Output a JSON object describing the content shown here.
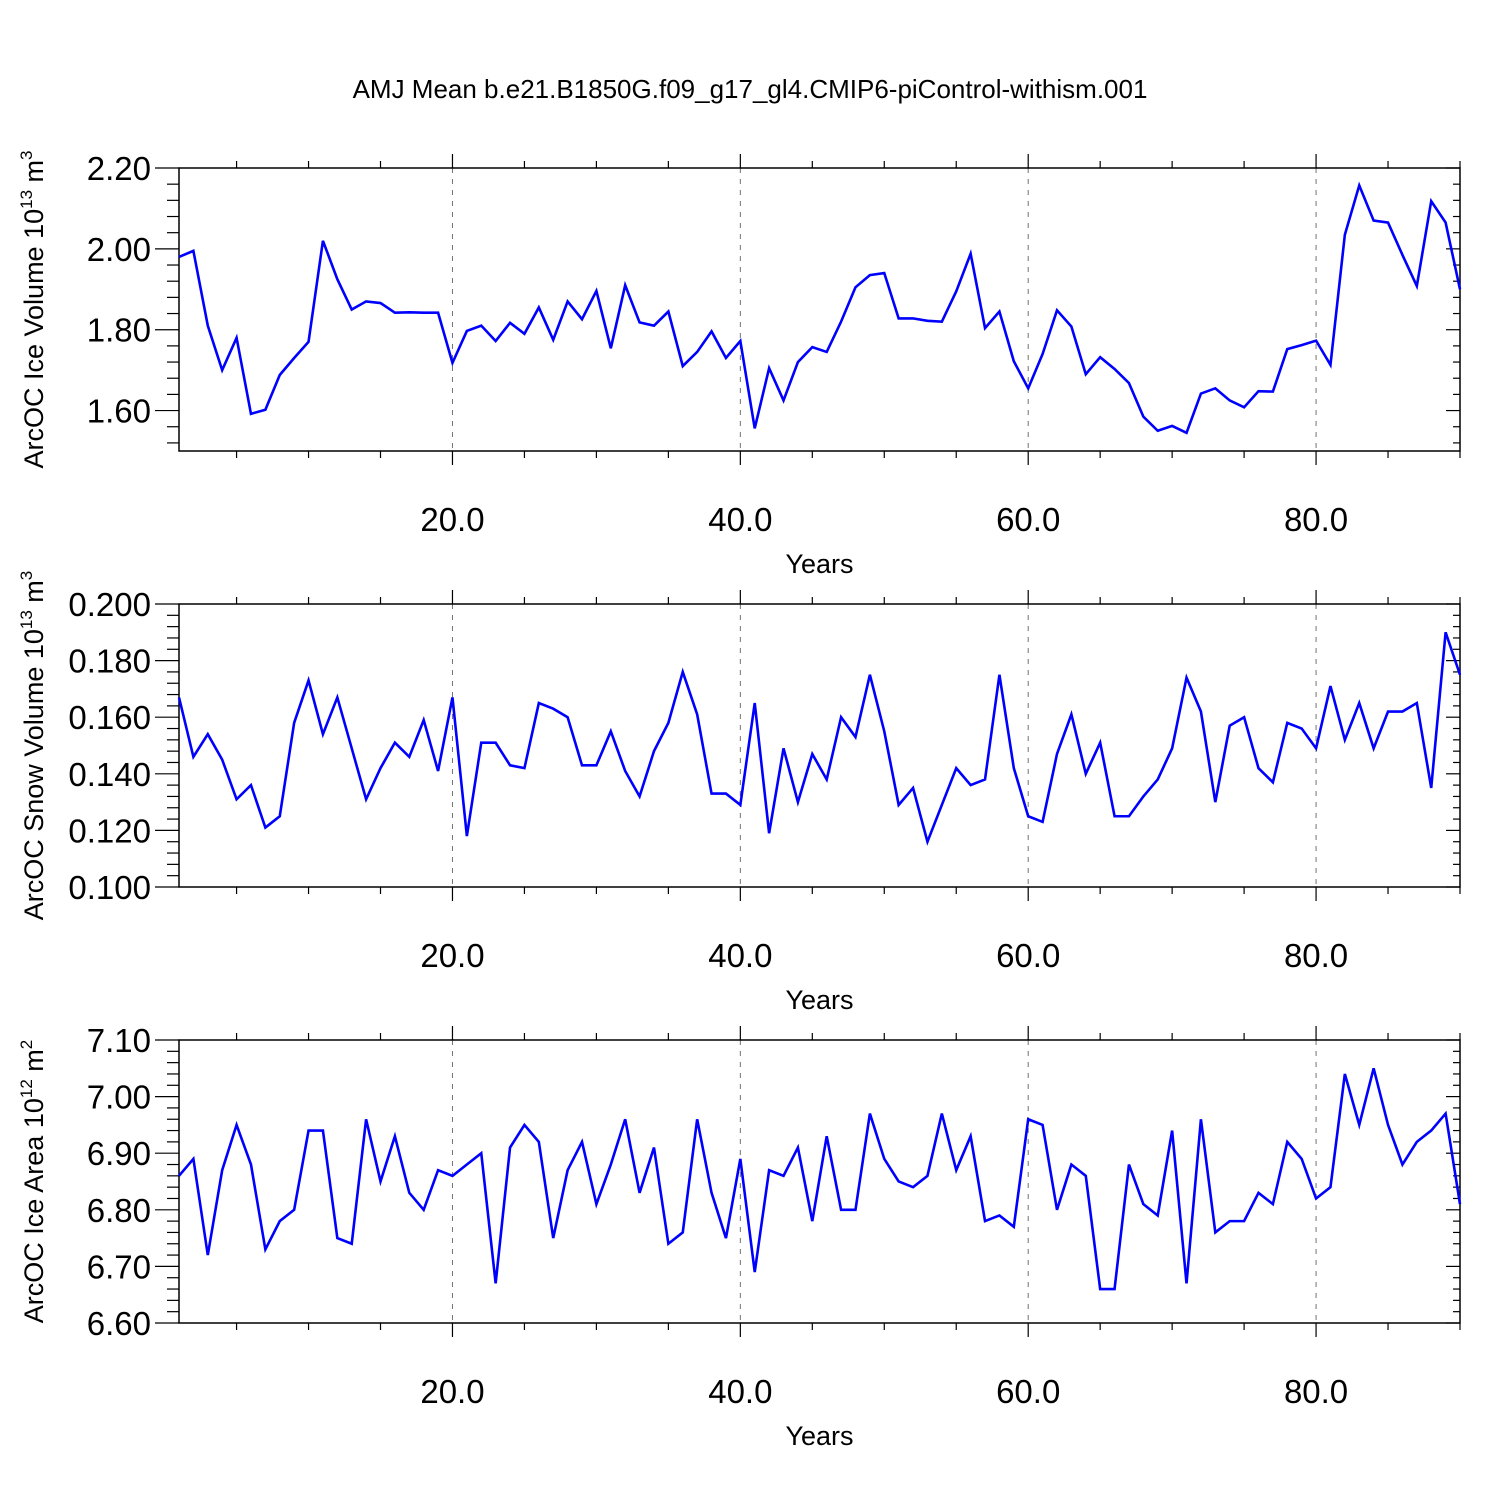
{
  "title": "AMJ Mean b.e21.B1850G.f09_g17_gl4.CMIP6-piControl-withism.001",
  "chart_data": [
    {
      "type": "line",
      "ylabel": "ArcOC Ice Volume 10",
      "ylabel_exp": "13",
      "ylabel_unit": " m",
      "ylabel_unit_exp": "3",
      "xlabel": "Years",
      "xlim": [
        1,
        90
      ],
      "ylim": [
        1.5,
        2.2
      ],
      "yticks": [
        1.6,
        1.8,
        2.0,
        2.2
      ],
      "ytick_labels": [
        "1.60",
        "1.80",
        "2.00",
        "2.20"
      ],
      "xticks": [
        20,
        40,
        60,
        80
      ],
      "xtick_labels": [
        "20.0",
        "40.0",
        "60.0",
        "80.0"
      ],
      "line_color": "#0000ff",
      "x": [
        1,
        2,
        3,
        4,
        5,
        6,
        7,
        8,
        9,
        10,
        11,
        12,
        13,
        14,
        15,
        16,
        17,
        18,
        19,
        20,
        21,
        22,
        23,
        24,
        25,
        26,
        27,
        28,
        29,
        30,
        31,
        32,
        33,
        34,
        35,
        36,
        37,
        38,
        39,
        40,
        41,
        42,
        43,
        44,
        45,
        46,
        47,
        48,
        49,
        50,
        51,
        52,
        53,
        54,
        55,
        56,
        57,
        58,
        59,
        60,
        61,
        62,
        63,
        64,
        65,
        66,
        67,
        68,
        69,
        70,
        71,
        72,
        73,
        74,
        75,
        76,
        77,
        78,
        79,
        80,
        81,
        82,
        83,
        84,
        85,
        86,
        87,
        88,
        89,
        90
      ],
      "values": [
        1.98,
        1.995,
        1.81,
        1.7,
        1.78,
        1.592,
        1.602,
        1.688,
        1.73,
        1.77,
        2.02,
        1.925,
        1.85,
        1.87,
        1.866,
        1.842,
        1.843,
        1.842,
        1.842,
        1.718,
        1.797,
        1.81,
        1.772,
        1.817,
        1.79,
        1.855,
        1.775,
        1.87,
        1.826,
        1.896,
        1.754,
        1.91,
        1.818,
        1.81,
        1.845,
        1.71,
        1.745,
        1.796,
        1.73,
        1.772,
        1.556,
        1.705,
        1.625,
        1.72,
        1.757,
        1.745,
        1.82,
        1.905,
        1.935,
        1.94,
        1.828,
        1.828,
        1.822,
        1.82,
        1.895,
        1.988,
        1.804,
        1.845,
        1.722,
        1.655,
        1.74,
        1.848,
        1.808,
        1.69,
        1.732,
        1.703,
        1.668,
        1.585,
        1.55,
        1.562,
        1.545,
        1.642,
        1.655,
        1.625,
        1.608,
        1.648,
        1.647,
        1.752,
        1.762,
        1.773,
        1.713,
        2.035,
        2.157,
        2.07,
        2.065,
        1.985,
        1.908,
        2.118,
        2.065,
        1.9
      ]
    },
    {
      "type": "line",
      "ylabel": "ArcOC Snow Volume 10",
      "ylabel_exp": "13",
      "ylabel_unit": " m",
      "ylabel_unit_exp": "3",
      "xlabel": "Years",
      "xlim": [
        1,
        90
      ],
      "ylim": [
        0.1,
        0.2
      ],
      "yticks": [
        0.1,
        0.12,
        0.14,
        0.16,
        0.18,
        0.2
      ],
      "ytick_labels": [
        "0.100",
        "0.120",
        "0.140",
        "0.160",
        "0.180",
        "0.200"
      ],
      "xticks": [
        20,
        40,
        60,
        80
      ],
      "xtick_labels": [
        "20.0",
        "40.0",
        "60.0",
        "80.0"
      ],
      "line_color": "#0000ff",
      "x": [
        1,
        2,
        3,
        4,
        5,
        6,
        7,
        8,
        9,
        10,
        11,
        12,
        13,
        14,
        15,
        16,
        17,
        18,
        19,
        20,
        21,
        22,
        23,
        24,
        25,
        26,
        27,
        28,
        29,
        30,
        31,
        32,
        33,
        34,
        35,
        36,
        37,
        38,
        39,
        40,
        41,
        42,
        43,
        44,
        45,
        46,
        47,
        48,
        49,
        50,
        51,
        52,
        53,
        54,
        55,
        56,
        57,
        58,
        59,
        60,
        61,
        62,
        63,
        64,
        65,
        66,
        67,
        68,
        69,
        70,
        71,
        72,
        73,
        74,
        75,
        76,
        77,
        78,
        79,
        80,
        81,
        82,
        83,
        84,
        85,
        86,
        87,
        88,
        89,
        90
      ],
      "values": [
        0.167,
        0.146,
        0.154,
        0.145,
        0.131,
        0.136,
        0.121,
        0.125,
        0.158,
        0.173,
        0.154,
        0.167,
        0.149,
        0.131,
        0.142,
        0.151,
        0.146,
        0.159,
        0.141,
        0.167,
        0.118,
        0.151,
        0.151,
        0.143,
        0.142,
        0.165,
        0.163,
        0.16,
        0.143,
        0.143,
        0.155,
        0.141,
        0.132,
        0.148,
        0.158,
        0.176,
        0.161,
        0.133,
        0.133,
        0.129,
        0.165,
        0.119,
        0.149,
        0.13,
        0.147,
        0.138,
        0.16,
        0.153,
        0.175,
        0.155,
        0.129,
        0.135,
        0.116,
        0.129,
        0.142,
        0.136,
        0.138,
        0.175,
        0.142,
        0.125,
        0.123,
        0.147,
        0.161,
        0.14,
        0.151,
        0.125,
        0.125,
        0.132,
        0.138,
        0.149,
        0.174,
        0.162,
        0.13,
        0.157,
        0.16,
        0.142,
        0.137,
        0.158,
        0.156,
        0.149,
        0.171,
        0.152,
        0.165,
        0.149,
        0.162,
        0.162,
        0.165,
        0.135,
        0.19,
        0.175
      ]
    },
    {
      "type": "line",
      "ylabel": "ArcOC Ice Area 10",
      "ylabel_exp": "12",
      "ylabel_unit": " m",
      "ylabel_unit_exp": "2",
      "xlabel": "Years",
      "xlim": [
        1,
        90
      ],
      "ylim": [
        6.6,
        7.1
      ],
      "yticks": [
        6.6,
        6.7,
        6.8,
        6.9,
        7.0,
        7.1
      ],
      "ytick_labels": [
        "6.60",
        "6.70",
        "6.80",
        "6.90",
        "7.00",
        "7.10"
      ],
      "xticks": [
        20,
        40,
        60,
        80
      ],
      "xtick_labels": [
        "20.0",
        "40.0",
        "60.0",
        "80.0"
      ],
      "line_color": "#0000ff",
      "x": [
        1,
        2,
        3,
        4,
        5,
        6,
        7,
        8,
        9,
        10,
        11,
        12,
        13,
        14,
        15,
        16,
        17,
        18,
        19,
        20,
        21,
        22,
        23,
        24,
        25,
        26,
        27,
        28,
        29,
        30,
        31,
        32,
        33,
        34,
        35,
        36,
        37,
        38,
        39,
        40,
        41,
        42,
        43,
        44,
        45,
        46,
        47,
        48,
        49,
        50,
        51,
        52,
        53,
        54,
        55,
        56,
        57,
        58,
        59,
        60,
        61,
        62,
        63,
        64,
        65,
        66,
        67,
        68,
        69,
        70,
        71,
        72,
        73,
        74,
        75,
        76,
        77,
        78,
        79,
        80,
        81,
        82,
        83,
        84,
        85,
        86,
        87,
        88,
        89,
        90
      ],
      "values": [
        6.86,
        6.89,
        6.72,
        6.87,
        6.95,
        6.88,
        6.73,
        6.78,
        6.8,
        6.94,
        6.94,
        6.75,
        6.74,
        6.96,
        6.85,
        6.93,
        6.83,
        6.8,
        6.87,
        6.86,
        6.88,
        6.9,
        6.67,
        6.91,
        6.95,
        6.92,
        6.75,
        6.87,
        6.92,
        6.81,
        6.88,
        6.96,
        6.83,
        6.91,
        6.74,
        6.76,
        6.96,
        6.83,
        6.75,
        6.89,
        6.69,
        6.87,
        6.86,
        6.91,
        6.78,
        6.93,
        6.8,
        6.8,
        6.97,
        6.89,
        6.85,
        6.84,
        6.86,
        6.97,
        6.87,
        6.93,
        6.78,
        6.79,
        6.77,
        6.96,
        6.95,
        6.8,
        6.88,
        6.86,
        6.66,
        6.66,
        6.88,
        6.81,
        6.79,
        6.94,
        6.67,
        6.96,
        6.76,
        6.78,
        6.78,
        6.83,
        6.81,
        6.92,
        6.89,
        6.82,
        6.84,
        7.04,
        6.95,
        7.05,
        6.95,
        6.88,
        6.92,
        6.94,
        6.97,
        6.81
      ]
    }
  ]
}
